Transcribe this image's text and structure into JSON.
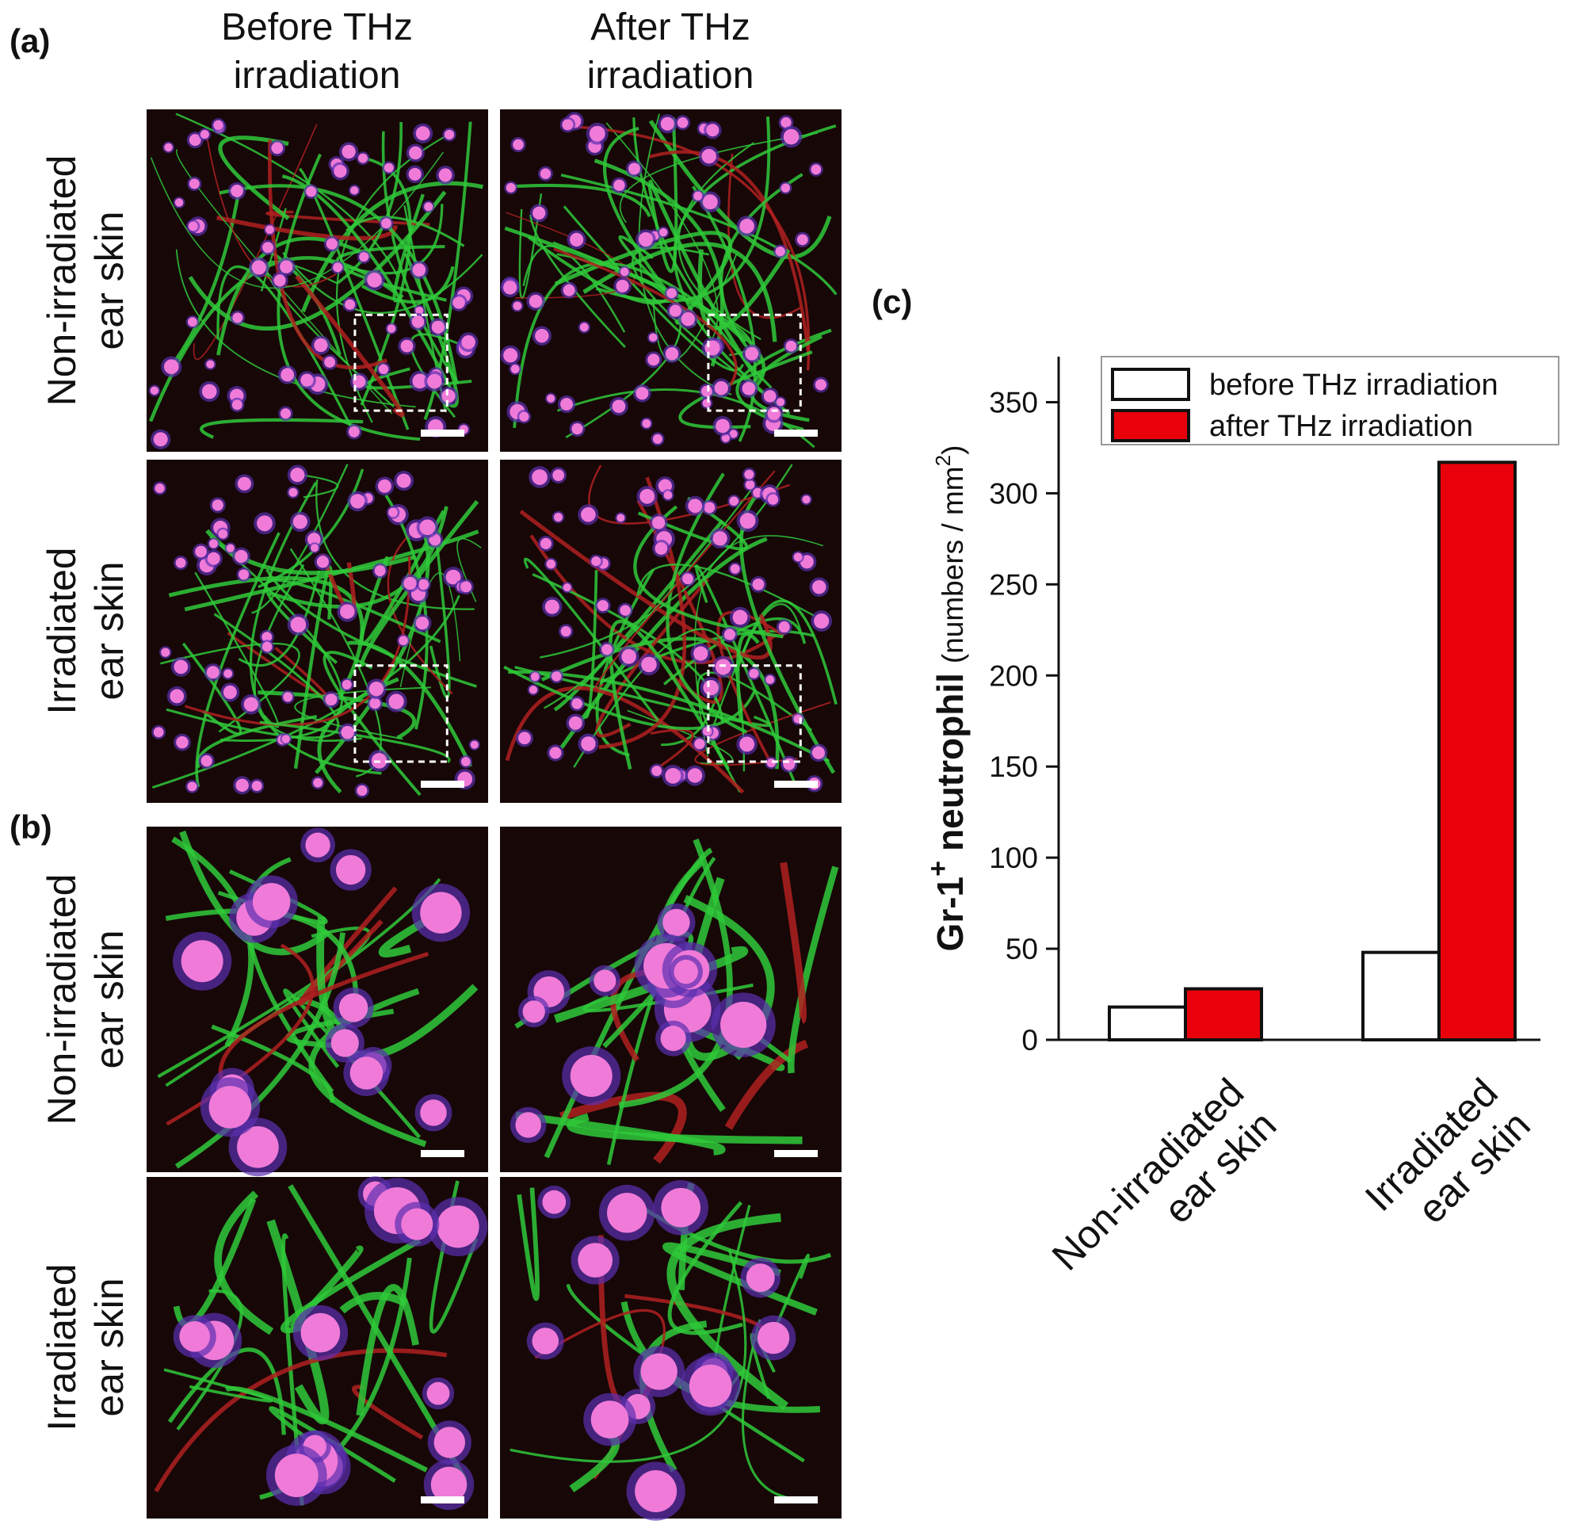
{
  "panel_a": {
    "label": "(a)",
    "columns": [
      "Before THz\nirradiation",
      "After THz\nirradiation"
    ],
    "rows": [
      "Non-irradiated\near skin",
      "Irradiated\near skin"
    ]
  },
  "panel_b": {
    "label": "(b)",
    "rows": [
      "Non-irradiated\near skin",
      "Irradiated\near skin"
    ]
  },
  "chart_data": {
    "type": "bar",
    "panel_label": "(c)",
    "y_label": {
      "text": "Gr-1",
      "sup": "+",
      "word": "neutrophil",
      "units": "(numbers / mm",
      "units_sup": "2",
      "units_end": ")"
    },
    "categories": [
      "Non-irradiated\near skin",
      "Irradiated\near skin"
    ],
    "series": [
      {
        "name": "before THz irradiation",
        "color": "#ffffff",
        "values": [
          18,
          48
        ]
      },
      {
        "name": "after THz irradiation",
        "color": "#e8000b",
        "values": [
          28,
          317
        ]
      }
    ],
    "ylim": [
      0,
      375
    ],
    "yticks": [
      0,
      50,
      100,
      150,
      200,
      250,
      300,
      350
    ],
    "legend": "top-right"
  }
}
